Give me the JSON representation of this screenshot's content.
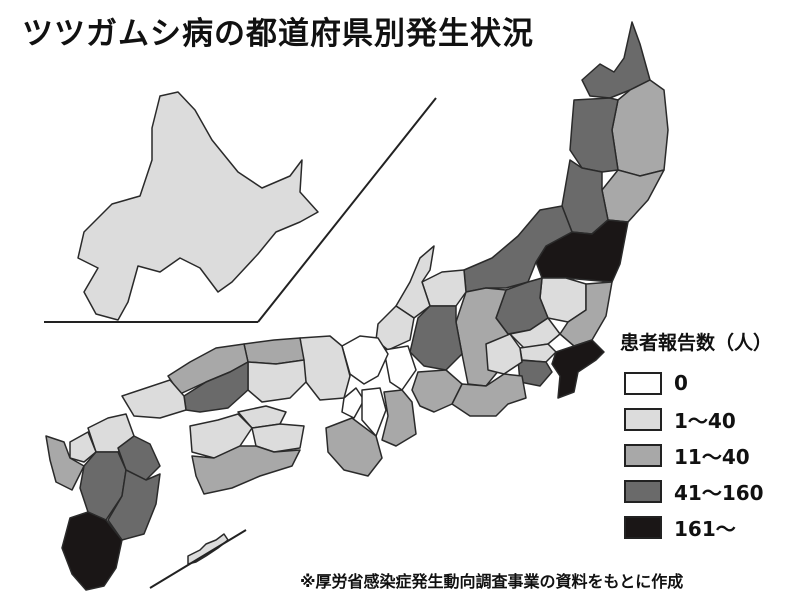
{
  "title": "ツツガムシ病の都道府県別発生状況",
  "legend": {
    "title": "患者報告数（人）",
    "items": [
      {
        "label": "0",
        "color": "#ffffff"
      },
      {
        "label": "1～40",
        "color": "#dcdcdc"
      },
      {
        "label": "11～40",
        "color": "#a8a8a8"
      },
      {
        "label": "41～160",
        "color": "#6a6a6a"
      },
      {
        "label": "161～",
        "color": "#1a1616"
      }
    ]
  },
  "source": "※厚労省感染症発生動向調査事業の資料をもとに作成"
}
